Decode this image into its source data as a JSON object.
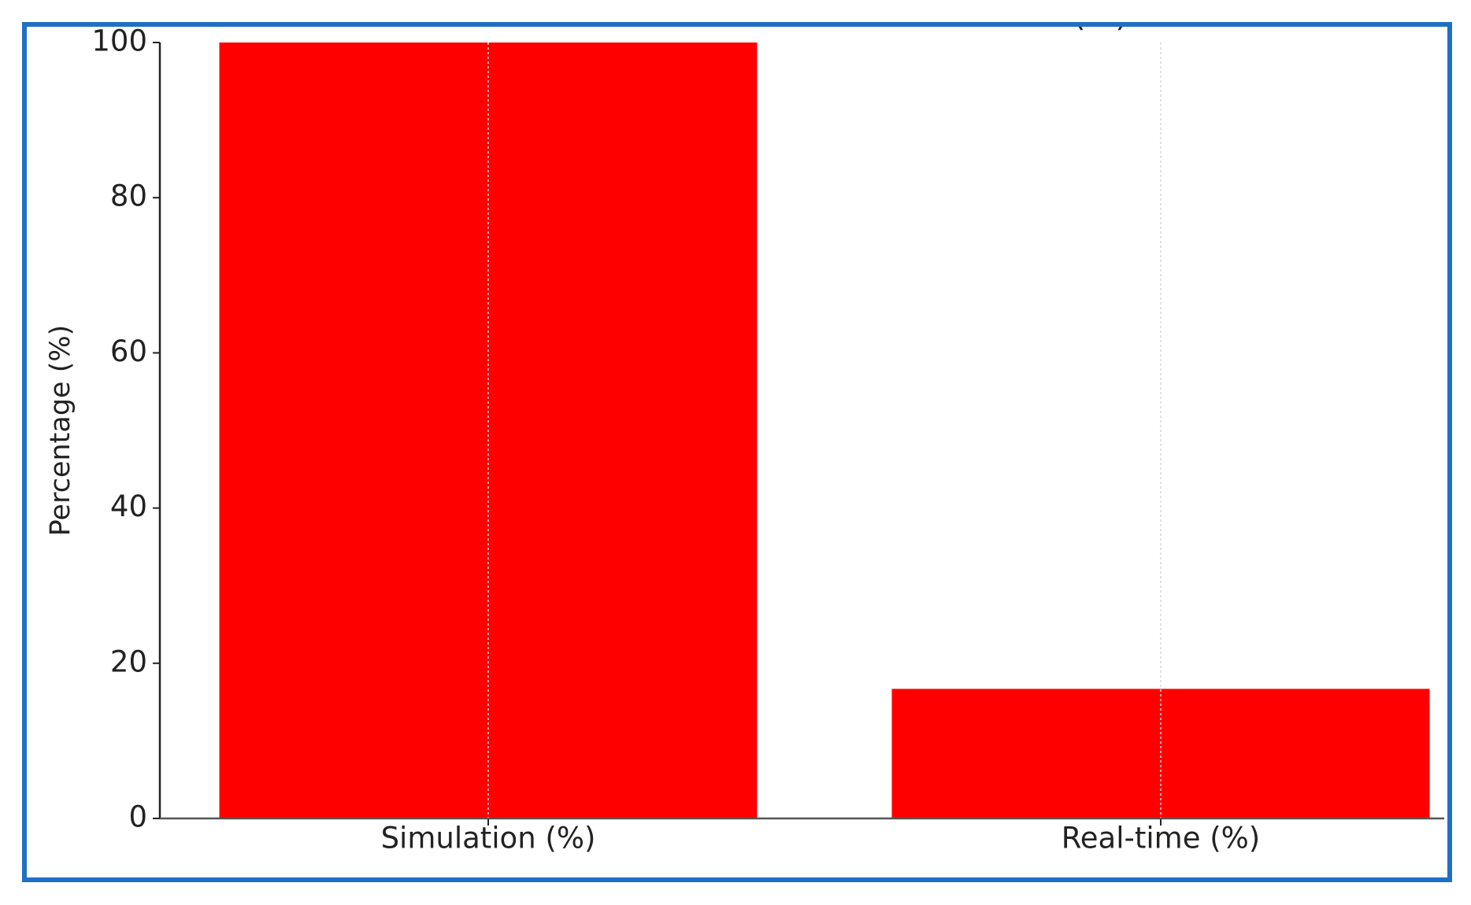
{
  "chart_data": {
    "type": "bar",
    "title": "Simulation vs Real-time Environment (%)",
    "ylabel": "Percentage (%)",
    "categories": [
      "Simulation (%)",
      "Real-time (%)"
    ],
    "values": [
      100,
      16.7
    ],
    "color": "#ff0000",
    "ylim": [
      0,
      100
    ],
    "yticks": [
      0,
      20,
      40,
      60,
      80,
      100
    ],
    "grid": true
  }
}
